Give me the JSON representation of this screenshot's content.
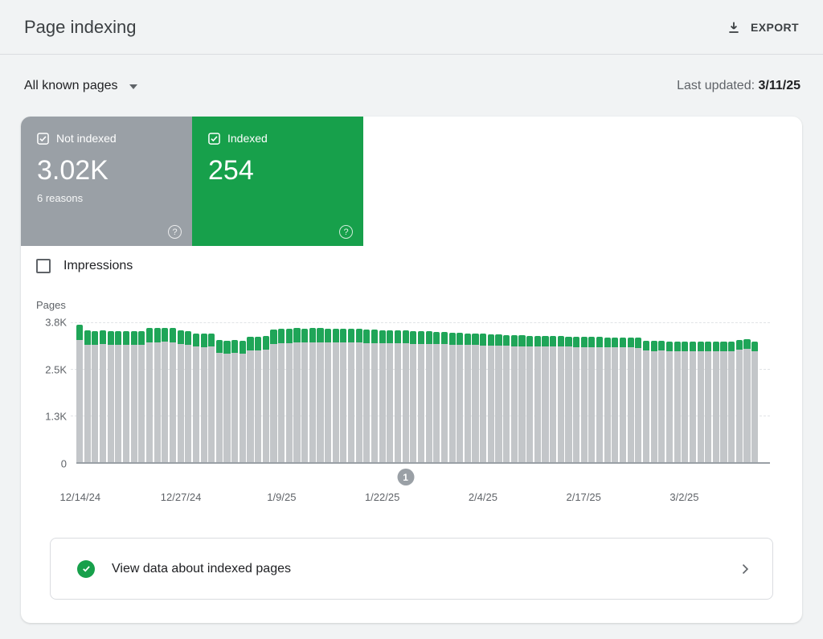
{
  "header": {
    "title": "Page indexing",
    "export_label": "EXPORT"
  },
  "toolbar": {
    "filter_label": "All known pages",
    "last_updated_label": "Last updated:",
    "last_updated_value": "3/11/25"
  },
  "cards": {
    "not_indexed": {
      "label": "Not indexed",
      "value": "3.02K",
      "sub": "6 reasons",
      "color": "#9aa0a6",
      "checked": true
    },
    "indexed": {
      "label": "Indexed",
      "value": "254",
      "color": "#17a04b",
      "checked": true
    }
  },
  "impressions_toggle": {
    "label": "Impressions",
    "checked": false
  },
  "icons": {
    "question_glyph": "?"
  },
  "chart": {
    "ylabel": "Pages"
  },
  "chart_data": {
    "type": "bar",
    "stacked": true,
    "title": "",
    "xlabel": "",
    "ylabel": "Pages",
    "ylim": [
      0,
      3800
    ],
    "grid": true,
    "legend_position": "none",
    "x": [
      "12/14/24",
      "12/15/24",
      "12/16/24",
      "12/17/24",
      "12/18/24",
      "12/19/24",
      "12/20/24",
      "12/21/24",
      "12/22/24",
      "12/23/24",
      "12/24/24",
      "12/25/24",
      "12/26/24",
      "12/27/24",
      "12/28/24",
      "12/29/24",
      "12/30/24",
      "12/31/24",
      "1/1/25",
      "1/2/25",
      "1/3/25",
      "1/4/25",
      "1/5/25",
      "1/6/25",
      "1/7/25",
      "1/8/25",
      "1/9/25",
      "1/10/25",
      "1/11/25",
      "1/12/25",
      "1/13/25",
      "1/14/25",
      "1/15/25",
      "1/16/25",
      "1/17/25",
      "1/18/25",
      "1/19/25",
      "1/20/25",
      "1/21/25",
      "1/22/25",
      "1/23/25",
      "1/24/25",
      "1/25/25",
      "1/26/25",
      "1/27/25",
      "1/28/25",
      "1/29/25",
      "1/30/25",
      "1/31/25",
      "2/1/25",
      "2/2/25",
      "2/3/25",
      "2/4/25",
      "2/5/25",
      "2/6/25",
      "2/7/25",
      "2/8/25",
      "2/9/25",
      "2/10/25",
      "2/11/25",
      "2/12/25",
      "2/13/25",
      "2/14/25",
      "2/15/25",
      "2/16/25",
      "2/17/25",
      "2/18/25",
      "2/19/25",
      "2/20/25",
      "2/21/25",
      "2/22/25",
      "2/23/25",
      "2/24/25",
      "2/25/25",
      "2/26/25",
      "2/27/25",
      "2/28/25",
      "3/1/25",
      "3/2/25",
      "3/3/25",
      "3/4/25",
      "3/5/25",
      "3/6/25",
      "3/7/25",
      "3/8/25",
      "3/9/25",
      "3/10/25",
      "3/11/25"
    ],
    "series": [
      {
        "name": "Not indexed",
        "color": "#c3c6c9",
        "values": [
          3330,
          3195,
          3185,
          3200,
          3190,
          3180,
          3190,
          3185,
          3195,
          3255,
          3265,
          3270,
          3260,
          3205,
          3195,
          3135,
          3125,
          3140,
          2965,
          2950,
          2960,
          2955,
          3035,
          3045,
          3050,
          3220,
          3235,
          3240,
          3250,
          3245,
          3255,
          3260,
          3255,
          3250,
          3245,
          3250,
          3245,
          3240,
          3235,
          3230,
          3225,
          3230,
          3225,
          3220,
          3215,
          3210,
          3205,
          3200,
          3195,
          3190,
          3185,
          3180,
          3175,
          3170,
          3165,
          3160,
          3155,
          3150,
          3150,
          3145,
          3140,
          3140,
          3135,
          3135,
          3130,
          3130,
          3125,
          3125,
          3120,
          3120,
          3115,
          3115,
          3110,
          3030,
          3025,
          3030,
          3025,
          3020,
          3025,
          3020,
          3025,
          3020,
          3025,
          3020,
          3025,
          3060,
          3080,
          3020
        ]
      },
      {
        "name": "Indexed",
        "color": "#1fa558",
        "values": [
          400,
          380,
          375,
          380,
          370,
          375,
          380,
          370,
          375,
          385,
          380,
          385,
          380,
          375,
          370,
          365,
          360,
          365,
          355,
          350,
          355,
          350,
          370,
          365,
          370,
          385,
          390,
          385,
          390,
          385,
          390,
          385,
          380,
          375,
          380,
          375,
          370,
          370,
          365,
          360,
          355,
          350,
          350,
          345,
          345,
          340,
          335,
          330,
          325,
          320,
          315,
          310,
          310,
          305,
          300,
          300,
          295,
          295,
          290,
          290,
          285,
          285,
          285,
          280,
          280,
          280,
          280,
          275,
          275,
          275,
          275,
          270,
          270,
          265,
          265,
          265,
          260,
          260,
          260,
          260,
          255,
          255,
          255,
          255,
          255,
          260,
          265,
          254
        ]
      }
    ],
    "y_ticks": [
      {
        "value": 0,
        "label": "0"
      },
      {
        "value": 1267,
        "label": "1.3K"
      },
      {
        "value": 2533,
        "label": "2.5K"
      },
      {
        "value": 3800,
        "label": "3.8K"
      }
    ],
    "x_tick_labels": [
      "12/14/24",
      "12/27/24",
      "1/9/25",
      "1/22/25",
      "2/4/25",
      "2/17/25",
      "3/2/25"
    ],
    "x_tick_indices": [
      0,
      13,
      26,
      39,
      52,
      65,
      78
    ],
    "annotation": {
      "label": "1",
      "bar_index": 42
    }
  },
  "footer_link": {
    "label": "View data about indexed pages"
  }
}
